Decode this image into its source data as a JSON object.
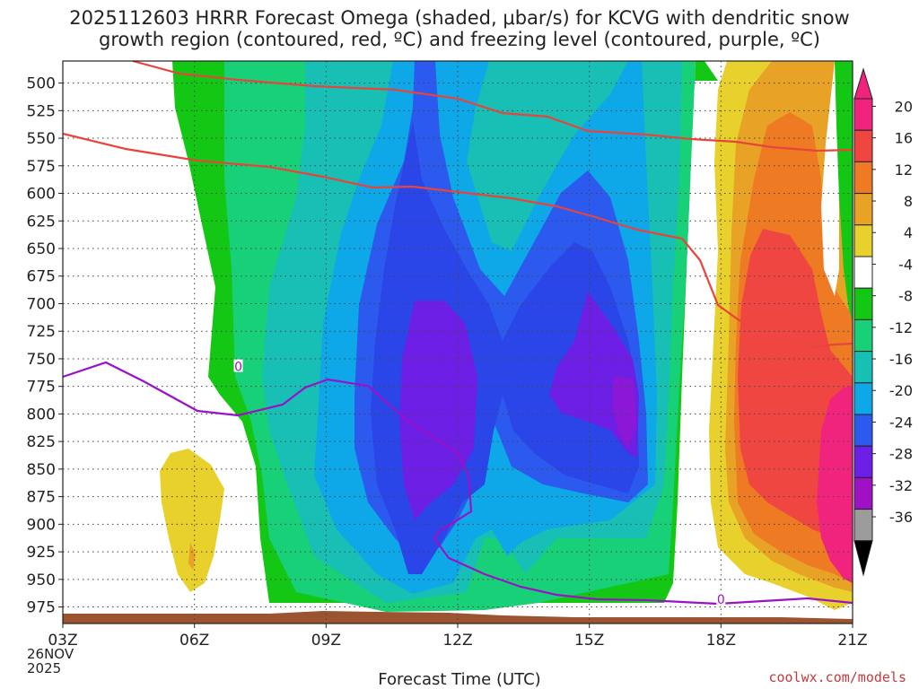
{
  "chart_data": {
    "type": "heatmap",
    "title_line1": "2025112603 HRRR Forecast Omega (shaded, μbar/s) for KCVG with dendritic snow",
    "title_line2": "growth region (contoured, red, ºC) and freezing level (contoured, purple, ºC)",
    "xlabel": "Forecast Time (UTC)",
    "x_ticks": [
      "03Z",
      "06Z",
      "09Z",
      "12Z",
      "15Z",
      "18Z",
      "21Z"
    ],
    "x_range_hours": [
      3,
      21
    ],
    "start_date": [
      "26NOV",
      "2025"
    ],
    "y_ticks": [
      500,
      525,
      550,
      575,
      600,
      625,
      650,
      675,
      700,
      725,
      750,
      775,
      800,
      825,
      850,
      875,
      900,
      925,
      950,
      975
    ],
    "y_range_hPa": [
      480,
      990
    ],
    "colorbar_labels": [
      "20",
      "16",
      "12",
      "8",
      "4",
      "-4",
      "-8",
      "-12",
      "-16",
      "-20",
      "-24",
      "-28",
      "-32",
      "-36"
    ],
    "colorbar_colors": [
      "#f0247d",
      "#ef4642",
      "#ee7a23",
      "#e8a326",
      "#e8d12c",
      "#ffffff",
      "#13c714",
      "#18d078",
      "#17bfb4",
      "#0ea8e8",
      "#2c5aee",
      "#6d1fe6",
      "#a010c5",
      "#9c9c9c"
    ],
    "freezing_level_label": "0",
    "credit": "coolwx.com/models"
  }
}
